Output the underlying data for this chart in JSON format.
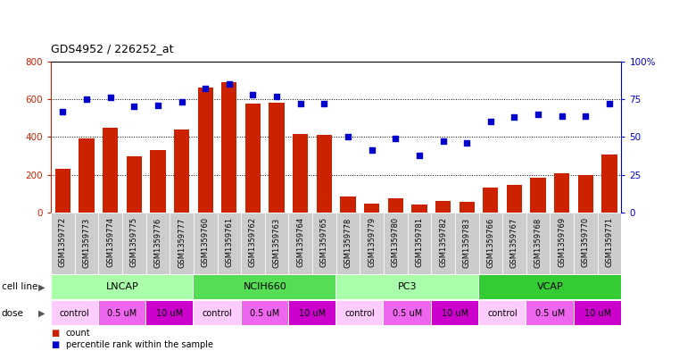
{
  "title": "GDS4952 / 226252_at",
  "samples": [
    "GSM1359772",
    "GSM1359773",
    "GSM1359774",
    "GSM1359775",
    "GSM1359776",
    "GSM1359777",
    "GSM1359760",
    "GSM1359761",
    "GSM1359762",
    "GSM1359763",
    "GSM1359764",
    "GSM1359765",
    "GSM1359778",
    "GSM1359779",
    "GSM1359780",
    "GSM1359781",
    "GSM1359782",
    "GSM1359783",
    "GSM1359766",
    "GSM1359767",
    "GSM1359768",
    "GSM1359769",
    "GSM1359770",
    "GSM1359771"
  ],
  "counts": [
    230,
    390,
    450,
    295,
    330,
    440,
    660,
    690,
    575,
    580,
    415,
    410,
    85,
    45,
    75,
    40,
    60,
    55,
    130,
    145,
    185,
    205,
    200,
    305
  ],
  "percentiles": [
    67,
    75,
    76,
    70,
    71,
    73,
    82,
    85,
    78,
    77,
    72,
    72,
    50,
    41,
    49,
    38,
    47,
    46,
    60,
    63,
    65,
    64,
    64,
    72
  ],
  "cell_lines": [
    {
      "name": "LNCAP",
      "start": 0,
      "end": 6,
      "color": "#AAFFAA"
    },
    {
      "name": "NCIH660",
      "start": 6,
      "end": 12,
      "color": "#55DD55"
    },
    {
      "name": "PC3",
      "start": 12,
      "end": 18,
      "color": "#AAFFAA"
    },
    {
      "name": "VCAP",
      "start": 18,
      "end": 24,
      "color": "#33CC33"
    }
  ],
  "dose_groups": [
    {
      "label": "control",
      "start": 0,
      "end": 2,
      "color": "#FFCCFF"
    },
    {
      "label": "0.5 uM",
      "start": 2,
      "end": 4,
      "color": "#EE66EE"
    },
    {
      "label": "10 uM",
      "start": 4,
      "end": 6,
      "color": "#CC00CC"
    },
    {
      "label": "control",
      "start": 6,
      "end": 8,
      "color": "#FFCCFF"
    },
    {
      "label": "0.5 uM",
      "start": 8,
      "end": 10,
      "color": "#EE66EE"
    },
    {
      "label": "10 uM",
      "start": 10,
      "end": 12,
      "color": "#CC00CC"
    },
    {
      "label": "control",
      "start": 12,
      "end": 14,
      "color": "#FFCCFF"
    },
    {
      "label": "0.5 uM",
      "start": 14,
      "end": 16,
      "color": "#EE66EE"
    },
    {
      "label": "10 uM",
      "start": 16,
      "end": 18,
      "color": "#CC00CC"
    },
    {
      "label": "control",
      "start": 18,
      "end": 20,
      "color": "#FFCCFF"
    },
    {
      "label": "0.5 uM",
      "start": 20,
      "end": 22,
      "color": "#EE66EE"
    },
    {
      "label": "10 uM",
      "start": 22,
      "end": 24,
      "color": "#CC00CC"
    }
  ],
  "bar_color": "#CC2200",
  "dot_color": "#0000CC",
  "ylim_left": [
    0,
    800
  ],
  "ylim_right": [
    0,
    100
  ],
  "yticks_left": [
    0,
    200,
    400,
    600,
    800
  ],
  "yticks_right": [
    0,
    25,
    50,
    75,
    100
  ],
  "ytick_right_labels": [
    "0",
    "25",
    "50",
    "75",
    "100%"
  ],
  "sample_bg_color": "#CCCCCC",
  "legend_count_color": "#CC2200",
  "legend_dot_color": "#0000CC"
}
